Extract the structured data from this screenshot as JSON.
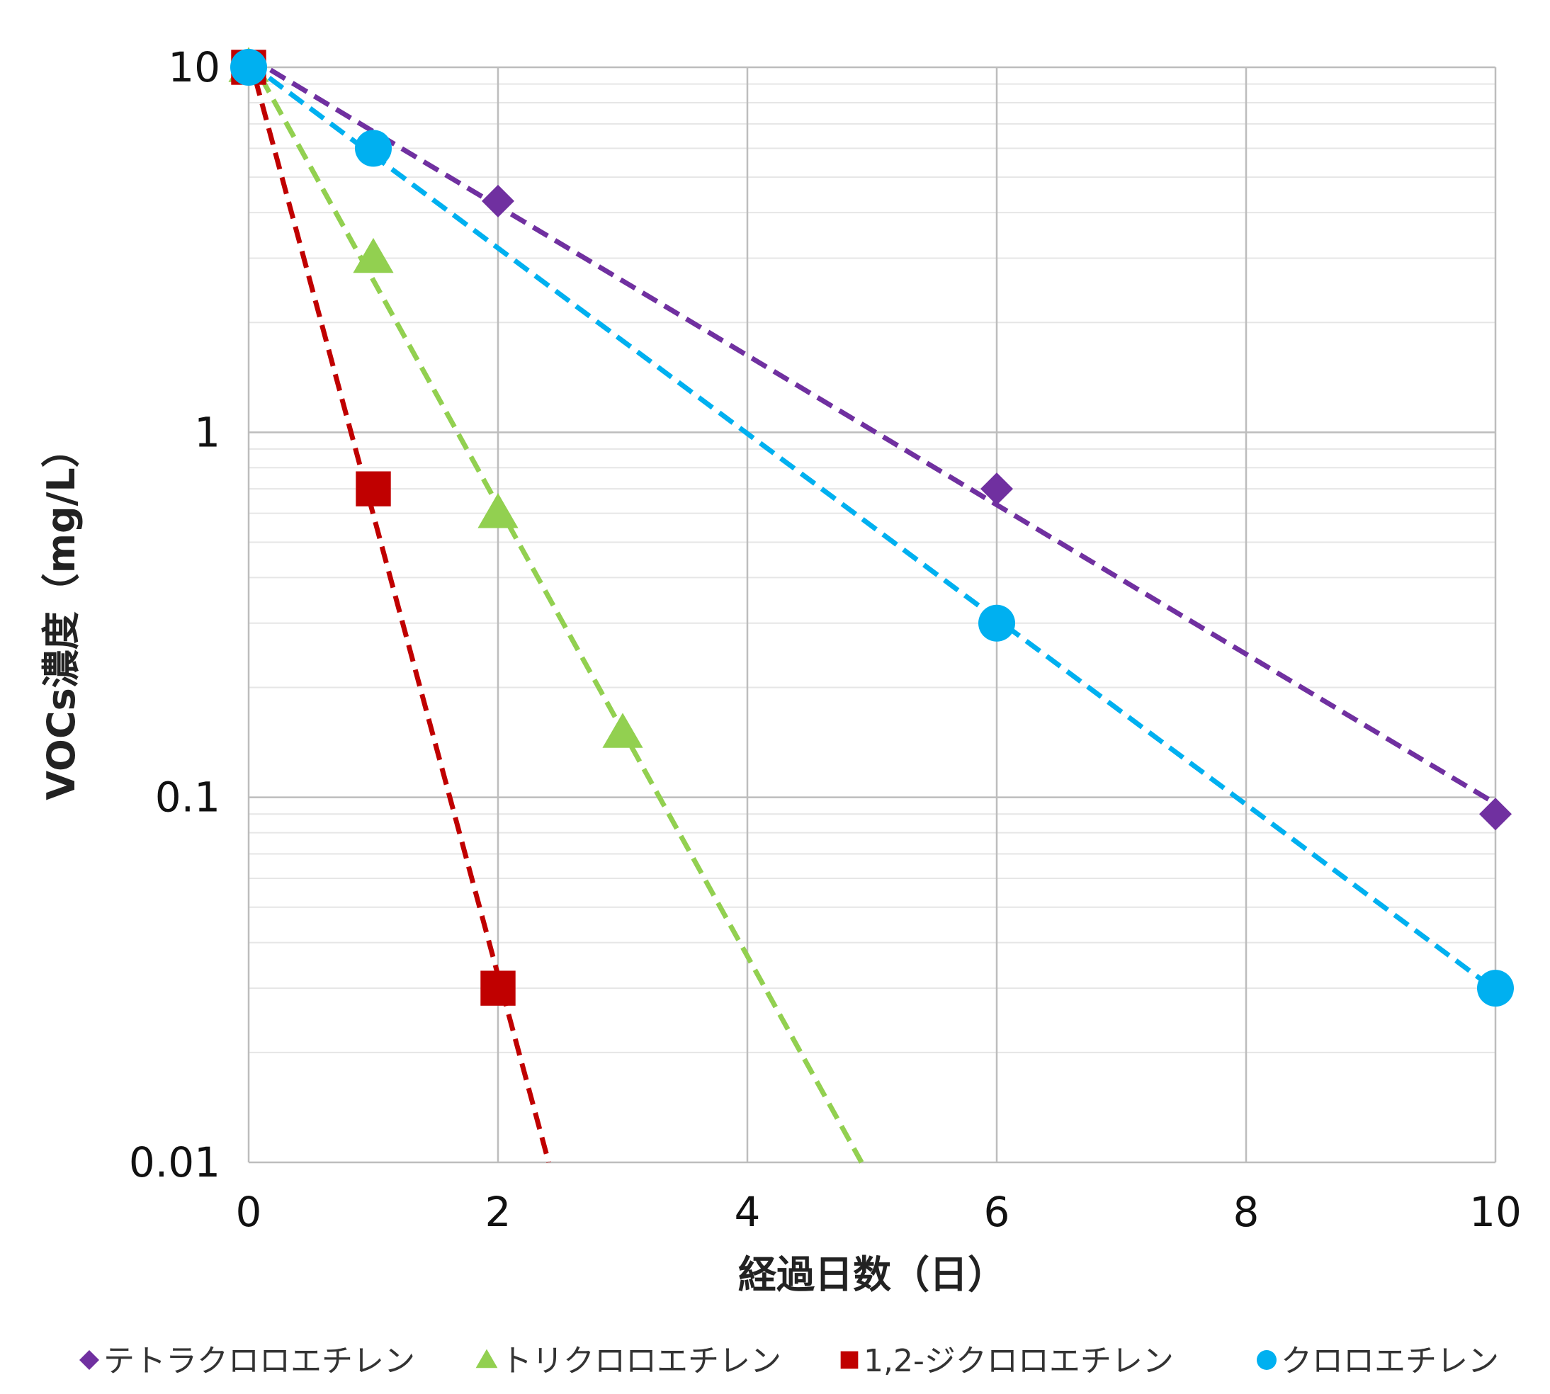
{
  "chart_data": {
    "type": "scatter",
    "xlabel": "経過日数（日）",
    "ylabel": "VOCs濃度（mg/L）",
    "xlim": [
      0,
      10
    ],
    "ylim": [
      0.01,
      10
    ],
    "yscale": "log",
    "xticks": [
      "0",
      "2",
      "4",
      "6",
      "8",
      "10"
    ],
    "yticks": [
      "0.01",
      "0.1",
      "1",
      "10"
    ],
    "grid": true,
    "legend_position": "bottom",
    "trendline": "exponential (dashed)",
    "series": [
      {
        "name": "テトラクロロエチレン",
        "marker": "diamond",
        "color": "#7030a0",
        "x": [
          0,
          2,
          6,
          10
        ],
        "y": [
          10,
          4.3,
          0.7,
          0.09
        ]
      },
      {
        "name": "トリクロロエチレン",
        "marker": "triangle",
        "color": "#92d050",
        "x": [
          0,
          1,
          2,
          3
        ],
        "y": [
          10,
          3,
          0.6,
          0.15
        ]
      },
      {
        "name": "1,2-ジクロロエチレン",
        "marker": "square",
        "color": "#c00000",
        "x": [
          0,
          1,
          2
        ],
        "y": [
          10,
          0.7,
          0.03
        ]
      },
      {
        "name": "クロロエチレン",
        "marker": "circle",
        "color": "#00b0f0",
        "x": [
          0,
          1,
          6,
          10
        ],
        "y": [
          10,
          6,
          0.3,
          0.03
        ]
      }
    ]
  }
}
